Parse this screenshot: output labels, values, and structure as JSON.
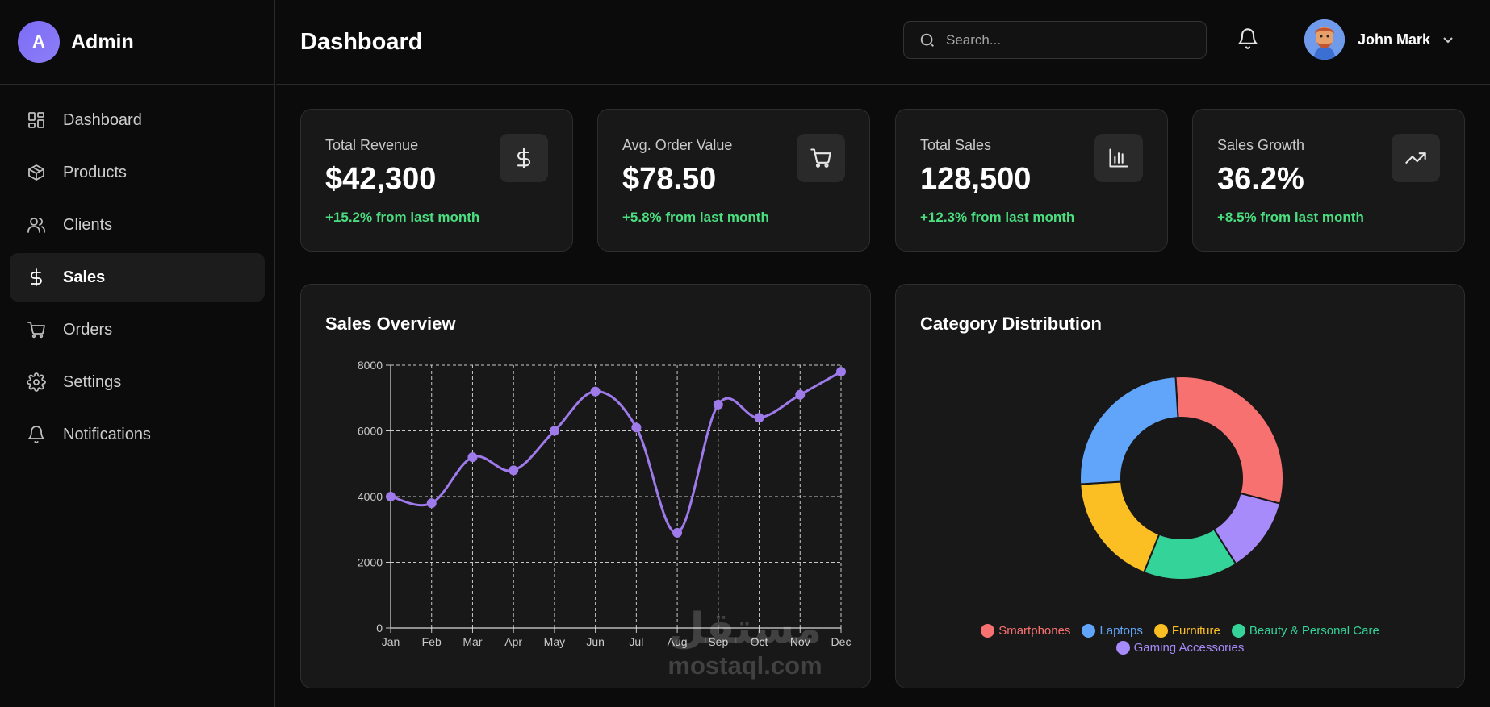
{
  "brand": {
    "initial": "A",
    "name": "Admin"
  },
  "sidebar": {
    "items": [
      {
        "label": "Dashboard",
        "icon": "dashboard-grid-icon",
        "active": false
      },
      {
        "label": "Products",
        "icon": "box-icon",
        "active": false
      },
      {
        "label": "Clients",
        "icon": "users-icon",
        "active": false
      },
      {
        "label": "Sales",
        "icon": "dollar-icon",
        "active": true
      },
      {
        "label": "Orders",
        "icon": "cart-icon",
        "active": false
      },
      {
        "label": "Settings",
        "icon": "gear-icon",
        "active": false
      },
      {
        "label": "Notifications",
        "icon": "bell-icon",
        "active": false
      }
    ]
  },
  "header": {
    "title": "Dashboard",
    "search_placeholder": "Search...",
    "user_name": "John Mark"
  },
  "stats": [
    {
      "label": "Total Revenue",
      "value": "$42,300",
      "change": "+15.2% from last month",
      "icon": "dollar-icon"
    },
    {
      "label": "Avg. Order Value",
      "value": "$78.50",
      "change": "+5.8% from last month",
      "icon": "cart-icon"
    },
    {
      "label": "Total Sales",
      "value": "128,500",
      "change": "+12.3% from last month",
      "icon": "bar-chart-icon"
    },
    {
      "label": "Sales Growth",
      "value": "36.2%",
      "change": "+8.5% from last month",
      "icon": "trending-up-icon"
    }
  ],
  "chart_data": [
    {
      "type": "line",
      "title": "Sales Overview",
      "categories": [
        "Jan",
        "Feb",
        "Mar",
        "Apr",
        "May",
        "Jun",
        "Jul",
        "Aug",
        "Sep",
        "Oct",
        "Nov",
        "Dec"
      ],
      "series": [
        {
          "values": [
            4000,
            3800,
            5200,
            4800,
            6000,
            7200,
            6100,
            2900,
            6800,
            6400,
            7100,
            7800
          ]
        }
      ],
      "yticks": [
        0,
        2000,
        4000,
        6000,
        8000
      ],
      "ylim": [
        0,
        8000
      ],
      "grid": true,
      "color": "#9f7aea"
    },
    {
      "type": "pie",
      "title": "Category Distribution",
      "donut": true,
      "legend_position": "bottom",
      "slices": [
        {
          "label": "Smartphones",
          "value": 30,
          "color": "#f87171"
        },
        {
          "label": "Gaming Accessories",
          "value": 12,
          "color": "#a78bfa"
        },
        {
          "label": "Beauty & Personal Care",
          "value": 15,
          "color": "#34d399"
        },
        {
          "label": "Furniture",
          "value": 18,
          "color": "#fbbf24"
        },
        {
          "label": "Laptops",
          "value": 25,
          "color": "#60a5fa"
        }
      ],
      "legend_order": [
        "Smartphones",
        "Laptops",
        "Furniture",
        "Beauty & Personal Care",
        "Gaming Accessories"
      ]
    }
  ],
  "watermark": {
    "arabic": "مستقل",
    "latin": "mostaql.com"
  }
}
